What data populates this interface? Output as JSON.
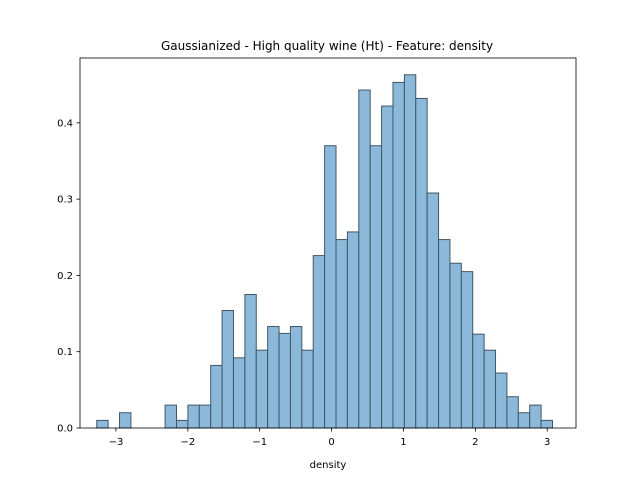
{
  "chart_data": {
    "type": "bar",
    "title": "Gaussianized - High quality wine (Ht) - Feature: density",
    "xlabel": "density",
    "ylabel": "",
    "xlim": [
      -3.5,
      3.4
    ],
    "ylim": [
      0,
      0.485
    ],
    "xticks": [
      -3,
      -2,
      -1,
      0,
      1,
      2,
      3
    ],
    "xtick_labels": [
      "−3",
      "−2",
      "−1",
      "0",
      "1",
      "2",
      "3"
    ],
    "yticks": [
      0.0,
      0.1,
      0.2,
      0.3,
      0.4
    ],
    "ytick_labels": [
      "0.0",
      "0.1",
      "0.2",
      "0.3",
      "0.4"
    ],
    "grid": false,
    "bar_fill": "#8cb9da",
    "bar_edge": "#3f5768",
    "bin_start": -3.267,
    "bin_width": 0.1585,
    "values": [
      0.01,
      0.0,
      0.02,
      0.0,
      0.0,
      0.0,
      0.03,
      0.01,
      0.03,
      0.03,
      0.082,
      0.154,
      0.092,
      0.175,
      0.102,
      0.133,
      0.124,
      0.133,
      0.102,
      0.226,
      0.37,
      0.247,
      0.257,
      0.443,
      0.37,
      0.422,
      0.453,
      0.463,
      0.432,
      0.308,
      0.247,
      0.216,
      0.205,
      0.123,
      0.102,
      0.072,
      0.041,
      0.02,
      0.03,
      0.01
    ]
  }
}
